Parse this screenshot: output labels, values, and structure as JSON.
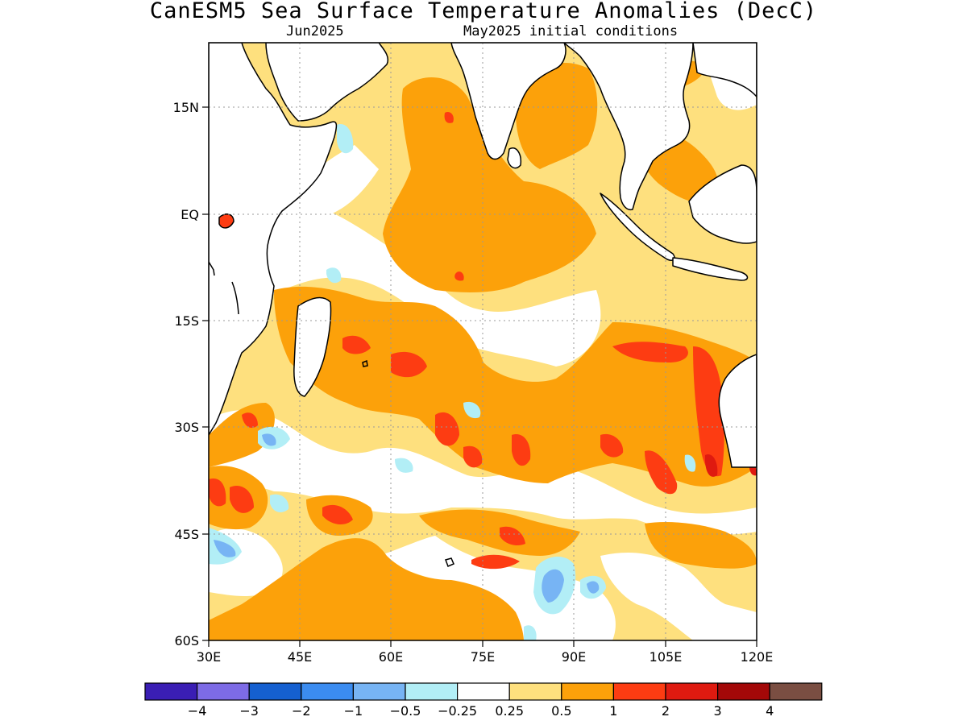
{
  "header": {
    "title": "CanESM5 Sea Surface Temperature Anomalies (DecC)",
    "forecast_month": "Jun2025",
    "initial_conditions": "May2025 initial conditions"
  },
  "map": {
    "lat_labels": [
      "15N",
      "EQ",
      "15S",
      "30S",
      "45S",
      "60S"
    ],
    "lon_labels": [
      "30E",
      "45E",
      "60E",
      "75E",
      "90E",
      "105E",
      "120E"
    ],
    "extent": {
      "lon": [
        30,
        120
      ],
      "lat": [
        -60,
        24
      ]
    }
  },
  "colorbar": {
    "colors": [
      "#3a1eb4",
      "#7d6be6",
      "#1560d0",
      "#3b8cf0",
      "#77b4f4",
      "#b2eef6",
      "#ffffff",
      "#fee07e",
      "#fca10a",
      "#fd3c12",
      "#df1a10",
      "#a30808",
      "#7a4e42"
    ],
    "labels": [
      "−4",
      "−3",
      "−2",
      "−1",
      "−0.5",
      "−0.25",
      "0.25",
      "0.5",
      "1",
      "2",
      "3",
      "4"
    ]
  }
}
